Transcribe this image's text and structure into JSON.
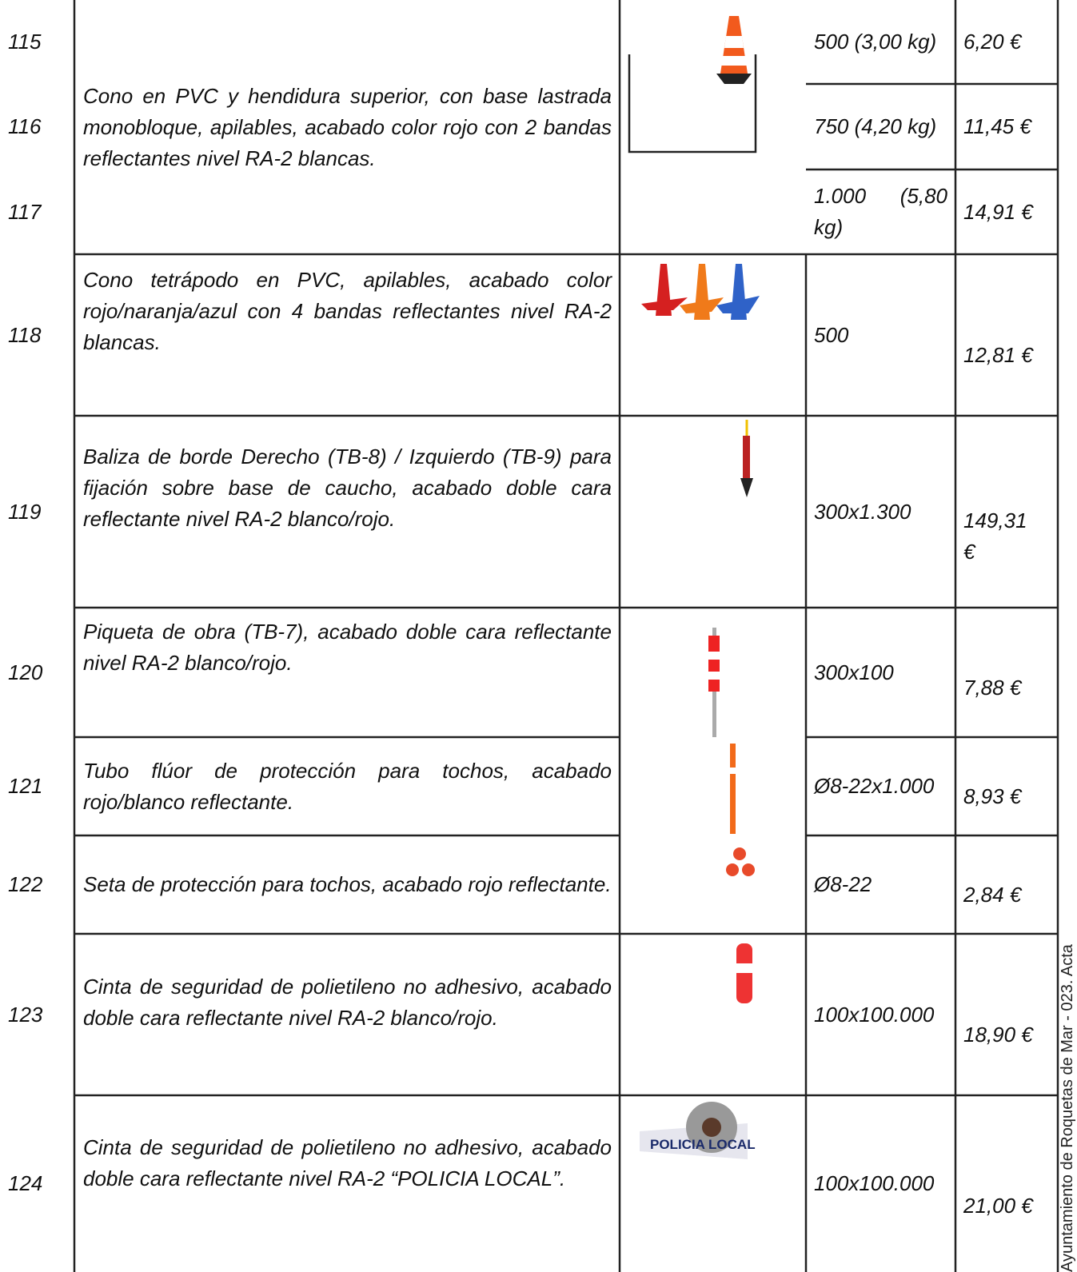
{
  "table": {
    "items": [
      {
        "code": "115",
        "size": "500 (3,00 kg)",
        "price": "6,20 €"
      },
      {
        "code": "116",
        "size": "750 (4,20 kg)",
        "price": "11,45 €"
      },
      {
        "code": "117",
        "size": "1.000 (5,80 kg)",
        "price": "14,91 €"
      },
      {
        "code": "118",
        "size": "500",
        "price": "12,81 €"
      },
      {
        "code": "119",
        "size": "300x1.300",
        "price": "149,31 €"
      },
      {
        "code": "120",
        "size": "300x100",
        "price": "7,88 €"
      },
      {
        "code": "121",
        "size": "Ø8-22x1.000",
        "price": "8,93 €"
      },
      {
        "code": "122",
        "size": "Ø8-22",
        "price": "2,84 €"
      },
      {
        "code": "123",
        "size": "100x100.000",
        "price": "18,90 €"
      },
      {
        "code": "124",
        "size": "100x100.000",
        "price": "21,00 €"
      }
    ],
    "descriptions": [
      "Cono en PVC y hendidura superior, con base lastrada monobloque, apilables, acabado color rojo con 2 bandas reflectantes nivel RA-2 blancas.",
      "Cono tetrápodo en PVC, apilables, acabado color rojo/naranja/azul con 4 bandas reflectantes nivel RA-2 blancas.",
      "Baliza de borde Derecho (TB-8) / Izquierdo (TB-9) para fijación sobre base de caucho, acabado doble cara reflectante nivel RA-2 blanco/rojo.",
      "Piqueta de obra (TB-7), acabado doble cara reflectante nivel RA-2 blanco/rojo.",
      "Tubo flúor de protección para tochos, acabado rojo/blanco reflectante.",
      "Seta de protección para tochos, acabado rojo reflectante.",
      "Cinta de seguridad de polietileno no adhesivo, acabado doble cara reflectante nivel RA-2 blanco/rojo.",
      "Cinta de seguridad de polietileno no adhesivo, acabado doble cara reflectante nivel RA-2 “POLICIA LOCAL”."
    ],
    "image_text": "POLICIA LOCAL"
  },
  "side_note": "Ayuntamiento de Roquetas de Mar - 023. Acta"
}
